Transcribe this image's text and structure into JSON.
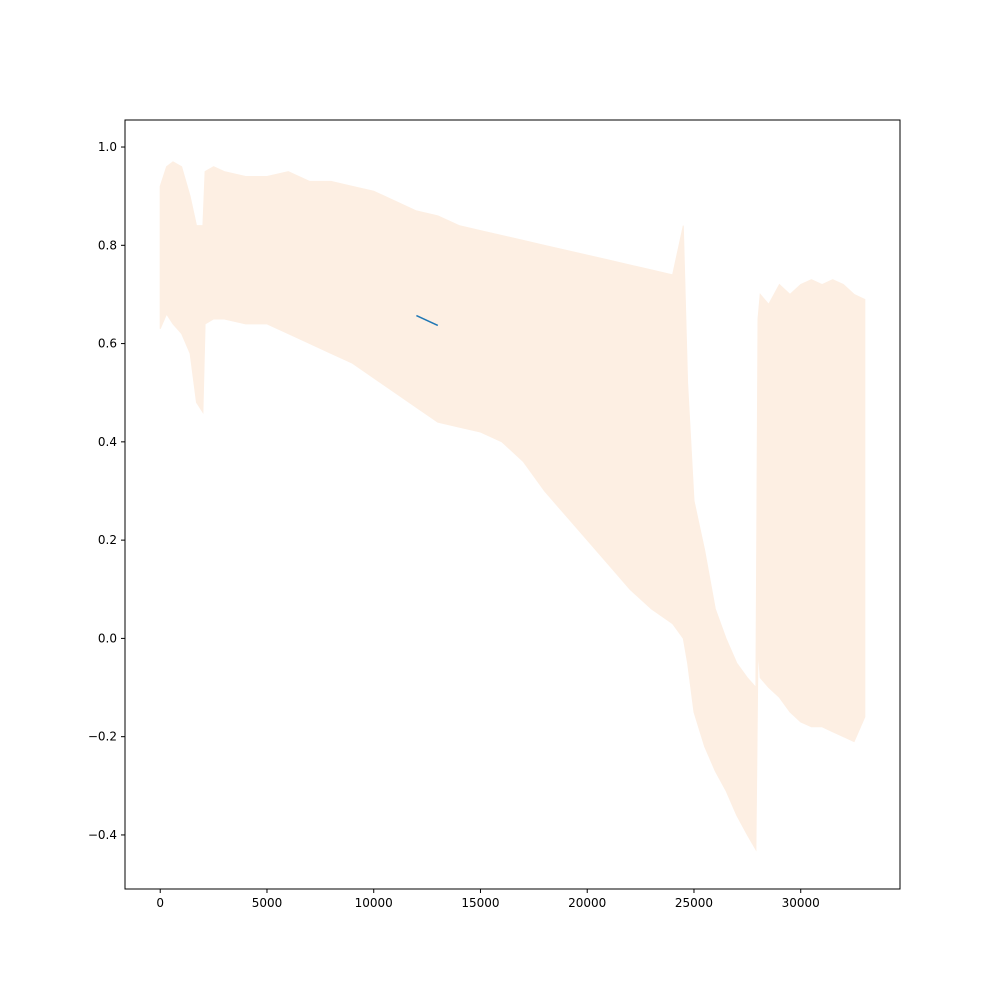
{
  "chart_data": {
    "type": "line",
    "title": "",
    "xlabel": "",
    "ylabel": "",
    "xlim": [
      -1650,
      34650
    ],
    "ylim": [
      -0.51,
      1.055
    ],
    "grid": false,
    "legend": "none",
    "x_ticks": [
      {
        "value": 0,
        "label": "0"
      },
      {
        "value": 5000,
        "label": "5000"
      },
      {
        "value": 10000,
        "label": "10000"
      },
      {
        "value": 15000,
        "label": "15000"
      },
      {
        "value": 20000,
        "label": "20000"
      },
      {
        "value": 25000,
        "label": "25000"
      },
      {
        "value": 30000,
        "label": "30000"
      }
    ],
    "y_ticks": [
      {
        "value": -0.4,
        "label": "−0.4"
      },
      {
        "value": -0.2,
        "label": "−0.2"
      },
      {
        "value": 0.0,
        "label": "0.0"
      },
      {
        "value": 0.2,
        "label": "0.2"
      },
      {
        "value": 0.4,
        "label": "0.4"
      },
      {
        "value": 0.6,
        "label": "0.6"
      },
      {
        "value": 0.8,
        "label": "0.8"
      },
      {
        "value": 1.0,
        "label": "1.0"
      }
    ],
    "series": [
      {
        "kind": "band",
        "color": "#fdefe3",
        "x": [
          0,
          300,
          600,
          1000,
          1400,
          1700,
          2000,
          2100,
          2500,
          3000,
          4000,
          5000,
          6000,
          7000,
          8000,
          9000,
          10000,
          11000,
          12000,
          13000,
          14000,
          15000,
          16000,
          17000,
          18000,
          19000,
          20000,
          21000,
          22000,
          23000,
          24000,
          24500,
          24700,
          25000,
          25500,
          26000,
          26500,
          27000,
          27500,
          27900,
          28000,
          28100,
          28500,
          29000,
          29500,
          30000,
          30500,
          31000,
          31500,
          32000,
          32500,
          33000
        ],
        "upper": [
          0.92,
          0.96,
          0.97,
          0.96,
          0.9,
          0.84,
          0.84,
          0.95,
          0.96,
          0.95,
          0.94,
          0.94,
          0.95,
          0.93,
          0.93,
          0.92,
          0.91,
          0.89,
          0.87,
          0.86,
          0.84,
          0.83,
          0.82,
          0.81,
          0.8,
          0.79,
          0.78,
          0.77,
          0.76,
          0.75,
          0.74,
          0.84,
          0.52,
          0.28,
          0.18,
          0.06,
          0.0,
          -0.05,
          -0.08,
          -0.1,
          0.65,
          0.7,
          0.68,
          0.72,
          0.7,
          0.72,
          0.73,
          0.72,
          0.73,
          0.72,
          0.7,
          0.69
        ],
        "lower": [
          0.63,
          0.66,
          0.64,
          0.62,
          0.58,
          0.48,
          0.46,
          0.64,
          0.65,
          0.65,
          0.64,
          0.64,
          0.62,
          0.6,
          0.58,
          0.56,
          0.53,
          0.5,
          0.47,
          0.44,
          0.43,
          0.42,
          0.4,
          0.36,
          0.3,
          0.25,
          0.2,
          0.15,
          0.1,
          0.06,
          0.03,
          0.0,
          -0.05,
          -0.15,
          -0.22,
          -0.27,
          -0.31,
          -0.36,
          -0.4,
          -0.43,
          -0.02,
          -0.08,
          -0.1,
          -0.12,
          -0.15,
          -0.17,
          -0.18,
          -0.18,
          -0.19,
          -0.2,
          -0.21,
          -0.16
        ]
      },
      {
        "kind": "line",
        "color": "#1f77b4",
        "x": [
          12000,
          13000
        ],
        "y": [
          0.657,
          0.637
        ]
      }
    ],
    "axis_color": "#000000"
  }
}
